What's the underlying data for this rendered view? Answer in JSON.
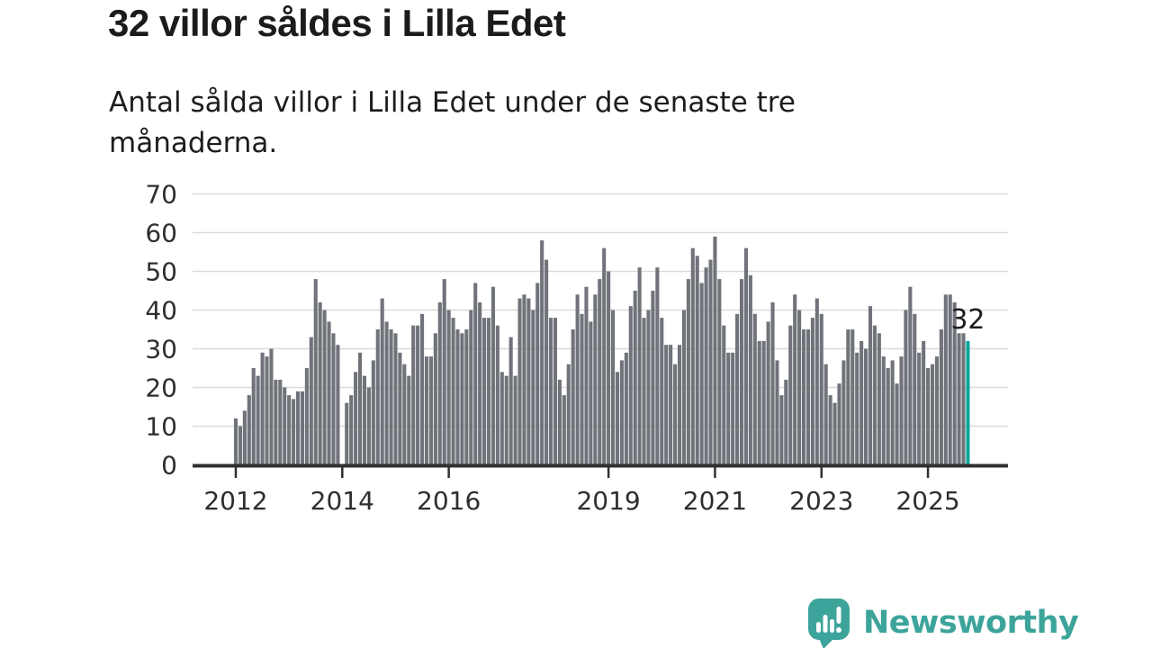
{
  "header": {
    "title": "32 villor såldes i Lilla Edet",
    "subtitle": "Antal sålda villor i Lilla Edet under de senaste tre månaderna."
  },
  "branding": {
    "logo_text": "Newsworthy",
    "logo_color": "#3da49b",
    "logo_icon": "speech-bubble-bar-chart-icon"
  },
  "chart_data": {
    "type": "bar",
    "frequency": "monthly",
    "x_start": "2012-01",
    "x_end": "2025-10",
    "values": [
      12,
      10,
      14,
      18,
      25,
      23,
      29,
      28,
      30,
      22,
      22,
      20,
      18,
      17,
      19,
      19,
      25,
      33,
      48,
      42,
      40,
      37,
      34,
      31,
      0,
      16,
      18,
      24,
      29,
      23,
      20,
      27,
      35,
      43,
      37,
      35,
      34,
      29,
      26,
      23,
      36,
      36,
      39,
      28,
      28,
      34,
      42,
      48,
      40,
      38,
      35,
      34,
      35,
      40,
      47,
      42,
      38,
      38,
      46,
      36,
      24,
      23,
      33,
      23,
      43,
      44,
      43,
      40,
      47,
      58,
      53,
      38,
      38,
      22,
      18,
      26,
      35,
      44,
      39,
      46,
      37,
      44,
      48,
      56,
      50,
      40,
      24,
      27,
      29,
      41,
      45,
      51,
      38,
      40,
      45,
      51,
      38,
      31,
      31,
      26,
      31,
      40,
      48,
      56,
      54,
      47,
      51,
      53,
      59,
      48,
      36,
      29,
      29,
      39,
      48,
      56,
      49,
      39,
      32,
      32,
      37,
      42,
      27,
      18,
      22,
      36,
      44,
      40,
      35,
      35,
      38,
      43,
      39,
      26,
      18,
      16,
      21,
      27,
      35,
      35,
      29,
      32,
      30,
      41,
      36,
      34,
      28,
      25,
      27,
      21,
      28,
      40,
      46,
      39,
      29,
      32,
      25,
      26,
      28,
      35,
      44,
      44,
      42,
      34,
      34,
      32
    ],
    "highlight": {
      "index": 165,
      "value": 32,
      "label": "32",
      "color": "#0ca59c"
    },
    "bar_color": "#70737a",
    "ylim": [
      0,
      70
    ],
    "yticks": [
      0,
      10,
      20,
      30,
      40,
      50,
      60,
      70
    ],
    "xticks": [
      2012,
      2014,
      2016,
      2019,
      2021,
      2023,
      2025
    ],
    "grid": true,
    "grid_color": "#dadada",
    "axis_color": "#303030",
    "label_color": "#2e2e2e",
    "annotation_color": "#1d1d1d",
    "legend": "none"
  }
}
